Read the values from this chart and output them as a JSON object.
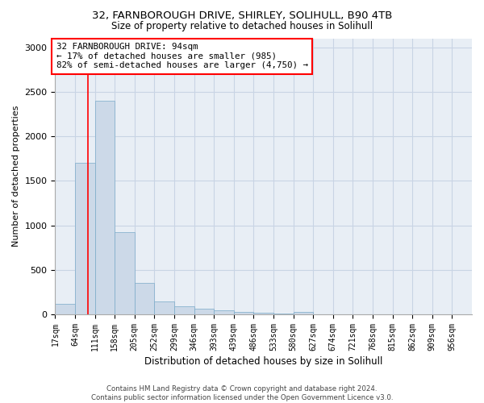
{
  "title1": "32, FARNBOROUGH DRIVE, SHIRLEY, SOLIHULL, B90 4TB",
  "title2": "Size of property relative to detached houses in Solihull",
  "xlabel": "Distribution of detached houses by size in Solihull",
  "ylabel": "Number of detached properties",
  "bin_labels": [
    "17sqm",
    "64sqm",
    "111sqm",
    "158sqm",
    "205sqm",
    "252sqm",
    "299sqm",
    "346sqm",
    "393sqm",
    "439sqm",
    "486sqm",
    "533sqm",
    "580sqm",
    "627sqm",
    "674sqm",
    "721sqm",
    "768sqm",
    "815sqm",
    "862sqm",
    "909sqm",
    "956sqm"
  ],
  "bar_values": [
    120,
    1700,
    2400,
    920,
    350,
    150,
    95,
    60,
    45,
    30,
    20,
    12,
    30,
    5,
    3,
    2,
    1,
    1,
    0,
    0,
    0
  ],
  "bar_color": "#ccd9e8",
  "bar_edge_color": "#7aaac8",
  "grid_color": "#c8d4e4",
  "background_color": "#e8eef5",
  "ylim": [
    0,
    3100
  ],
  "yticks": [
    0,
    500,
    1000,
    1500,
    2000,
    2500,
    3000
  ],
  "annotation_line1": "32 FARNBOROUGH DRIVE: 94sqm",
  "annotation_line2": "← 17% of detached houses are smaller (985)",
  "annotation_line3": "82% of semi-detached houses are larger (4,750) →",
  "footnote": "Contains HM Land Registry data © Crown copyright and database right 2024.\nContains public sector information licensed under the Open Government Licence v3.0."
}
